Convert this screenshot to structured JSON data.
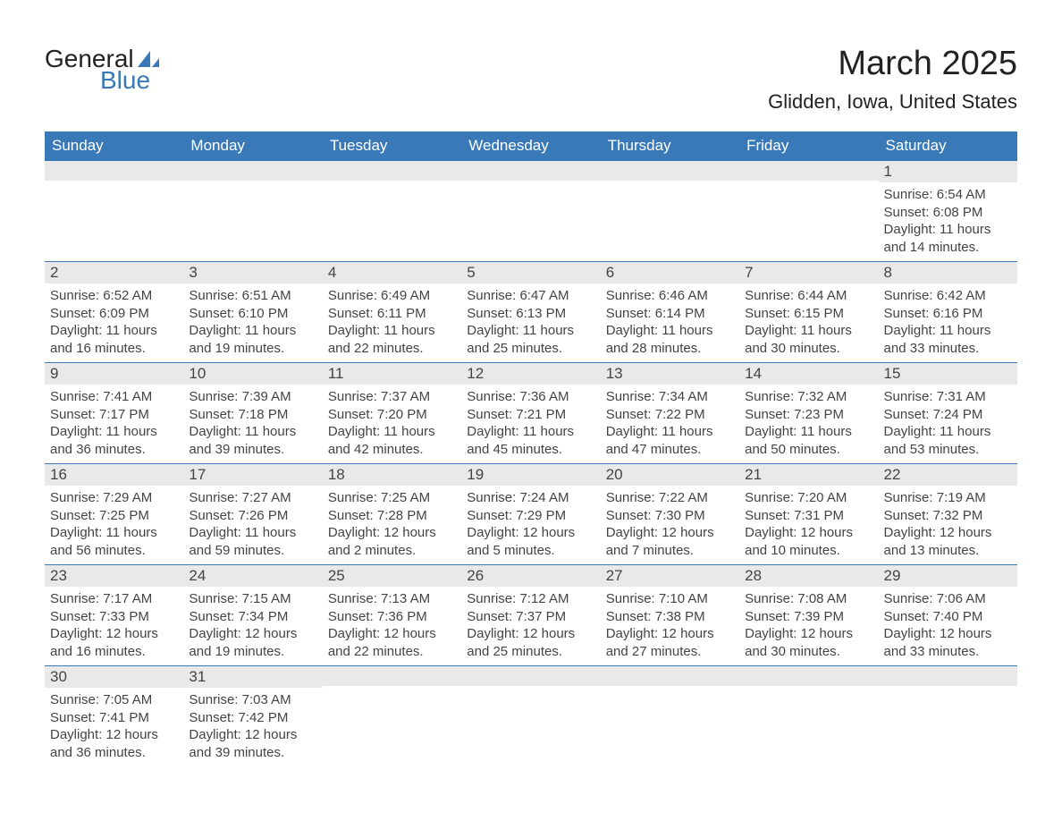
{
  "logo": {
    "general": "General",
    "blue": "Blue",
    "icon_color": "#3a79b7"
  },
  "title": "March 2025",
  "location": "Glidden, Iowa, United States",
  "day_headers": [
    "Sunday",
    "Monday",
    "Tuesday",
    "Wednesday",
    "Thursday",
    "Friday",
    "Saturday"
  ],
  "colors": {
    "header_bg": "#3a79b7",
    "header_text": "#ffffff",
    "daynum_bg": "#e9e9e9",
    "text": "#444444",
    "border": "#3a79b7"
  },
  "weeks": [
    [
      {
        "n": "",
        "lines": [
          "",
          "",
          "",
          ""
        ]
      },
      {
        "n": "",
        "lines": [
          "",
          "",
          "",
          ""
        ]
      },
      {
        "n": "",
        "lines": [
          "",
          "",
          "",
          ""
        ]
      },
      {
        "n": "",
        "lines": [
          "",
          "",
          "",
          ""
        ]
      },
      {
        "n": "",
        "lines": [
          "",
          "",
          "",
          ""
        ]
      },
      {
        "n": "",
        "lines": [
          "",
          "",
          "",
          ""
        ]
      },
      {
        "n": "1",
        "lines": [
          "Sunrise: 6:54 AM",
          "Sunset: 6:08 PM",
          "Daylight: 11 hours",
          "and 14 minutes."
        ]
      }
    ],
    [
      {
        "n": "2",
        "lines": [
          "Sunrise: 6:52 AM",
          "Sunset: 6:09 PM",
          "Daylight: 11 hours",
          "and 16 minutes."
        ]
      },
      {
        "n": "3",
        "lines": [
          "Sunrise: 6:51 AM",
          "Sunset: 6:10 PM",
          "Daylight: 11 hours",
          "and 19 minutes."
        ]
      },
      {
        "n": "4",
        "lines": [
          "Sunrise: 6:49 AM",
          "Sunset: 6:11 PM",
          "Daylight: 11 hours",
          "and 22 minutes."
        ]
      },
      {
        "n": "5",
        "lines": [
          "Sunrise: 6:47 AM",
          "Sunset: 6:13 PM",
          "Daylight: 11 hours",
          "and 25 minutes."
        ]
      },
      {
        "n": "6",
        "lines": [
          "Sunrise: 6:46 AM",
          "Sunset: 6:14 PM",
          "Daylight: 11 hours",
          "and 28 minutes."
        ]
      },
      {
        "n": "7",
        "lines": [
          "Sunrise: 6:44 AM",
          "Sunset: 6:15 PM",
          "Daylight: 11 hours",
          "and 30 minutes."
        ]
      },
      {
        "n": "8",
        "lines": [
          "Sunrise: 6:42 AM",
          "Sunset: 6:16 PM",
          "Daylight: 11 hours",
          "and 33 minutes."
        ]
      }
    ],
    [
      {
        "n": "9",
        "lines": [
          "Sunrise: 7:41 AM",
          "Sunset: 7:17 PM",
          "Daylight: 11 hours",
          "and 36 minutes."
        ]
      },
      {
        "n": "10",
        "lines": [
          "Sunrise: 7:39 AM",
          "Sunset: 7:18 PM",
          "Daylight: 11 hours",
          "and 39 minutes."
        ]
      },
      {
        "n": "11",
        "lines": [
          "Sunrise: 7:37 AM",
          "Sunset: 7:20 PM",
          "Daylight: 11 hours",
          "and 42 minutes."
        ]
      },
      {
        "n": "12",
        "lines": [
          "Sunrise: 7:36 AM",
          "Sunset: 7:21 PM",
          "Daylight: 11 hours",
          "and 45 minutes."
        ]
      },
      {
        "n": "13",
        "lines": [
          "Sunrise: 7:34 AM",
          "Sunset: 7:22 PM",
          "Daylight: 11 hours",
          "and 47 minutes."
        ]
      },
      {
        "n": "14",
        "lines": [
          "Sunrise: 7:32 AM",
          "Sunset: 7:23 PM",
          "Daylight: 11 hours",
          "and 50 minutes."
        ]
      },
      {
        "n": "15",
        "lines": [
          "Sunrise: 7:31 AM",
          "Sunset: 7:24 PM",
          "Daylight: 11 hours",
          "and 53 minutes."
        ]
      }
    ],
    [
      {
        "n": "16",
        "lines": [
          "Sunrise: 7:29 AM",
          "Sunset: 7:25 PM",
          "Daylight: 11 hours",
          "and 56 minutes."
        ]
      },
      {
        "n": "17",
        "lines": [
          "Sunrise: 7:27 AM",
          "Sunset: 7:26 PM",
          "Daylight: 11 hours",
          "and 59 minutes."
        ]
      },
      {
        "n": "18",
        "lines": [
          "Sunrise: 7:25 AM",
          "Sunset: 7:28 PM",
          "Daylight: 12 hours",
          "and 2 minutes."
        ]
      },
      {
        "n": "19",
        "lines": [
          "Sunrise: 7:24 AM",
          "Sunset: 7:29 PM",
          "Daylight: 12 hours",
          "and 5 minutes."
        ]
      },
      {
        "n": "20",
        "lines": [
          "Sunrise: 7:22 AM",
          "Sunset: 7:30 PM",
          "Daylight: 12 hours",
          "and 7 minutes."
        ]
      },
      {
        "n": "21",
        "lines": [
          "Sunrise: 7:20 AM",
          "Sunset: 7:31 PM",
          "Daylight: 12 hours",
          "and 10 minutes."
        ]
      },
      {
        "n": "22",
        "lines": [
          "Sunrise: 7:19 AM",
          "Sunset: 7:32 PM",
          "Daylight: 12 hours",
          "and 13 minutes."
        ]
      }
    ],
    [
      {
        "n": "23",
        "lines": [
          "Sunrise: 7:17 AM",
          "Sunset: 7:33 PM",
          "Daylight: 12 hours",
          "and 16 minutes."
        ]
      },
      {
        "n": "24",
        "lines": [
          "Sunrise: 7:15 AM",
          "Sunset: 7:34 PM",
          "Daylight: 12 hours",
          "and 19 minutes."
        ]
      },
      {
        "n": "25",
        "lines": [
          "Sunrise: 7:13 AM",
          "Sunset: 7:36 PM",
          "Daylight: 12 hours",
          "and 22 minutes."
        ]
      },
      {
        "n": "26",
        "lines": [
          "Sunrise: 7:12 AM",
          "Sunset: 7:37 PM",
          "Daylight: 12 hours",
          "and 25 minutes."
        ]
      },
      {
        "n": "27",
        "lines": [
          "Sunrise: 7:10 AM",
          "Sunset: 7:38 PM",
          "Daylight: 12 hours",
          "and 27 minutes."
        ]
      },
      {
        "n": "28",
        "lines": [
          "Sunrise: 7:08 AM",
          "Sunset: 7:39 PM",
          "Daylight: 12 hours",
          "and 30 minutes."
        ]
      },
      {
        "n": "29",
        "lines": [
          "Sunrise: 7:06 AM",
          "Sunset: 7:40 PM",
          "Daylight: 12 hours",
          "and 33 minutes."
        ]
      }
    ],
    [
      {
        "n": "30",
        "lines": [
          "Sunrise: 7:05 AM",
          "Sunset: 7:41 PM",
          "Daylight: 12 hours",
          "and 36 minutes."
        ]
      },
      {
        "n": "31",
        "lines": [
          "Sunrise: 7:03 AM",
          "Sunset: 7:42 PM",
          "Daylight: 12 hours",
          "and 39 minutes."
        ]
      },
      {
        "n": "",
        "lines": [
          "",
          "",
          "",
          ""
        ]
      },
      {
        "n": "",
        "lines": [
          "",
          "",
          "",
          ""
        ]
      },
      {
        "n": "",
        "lines": [
          "",
          "",
          "",
          ""
        ]
      },
      {
        "n": "",
        "lines": [
          "",
          "",
          "",
          ""
        ]
      },
      {
        "n": "",
        "lines": [
          "",
          "",
          "",
          ""
        ]
      }
    ]
  ]
}
